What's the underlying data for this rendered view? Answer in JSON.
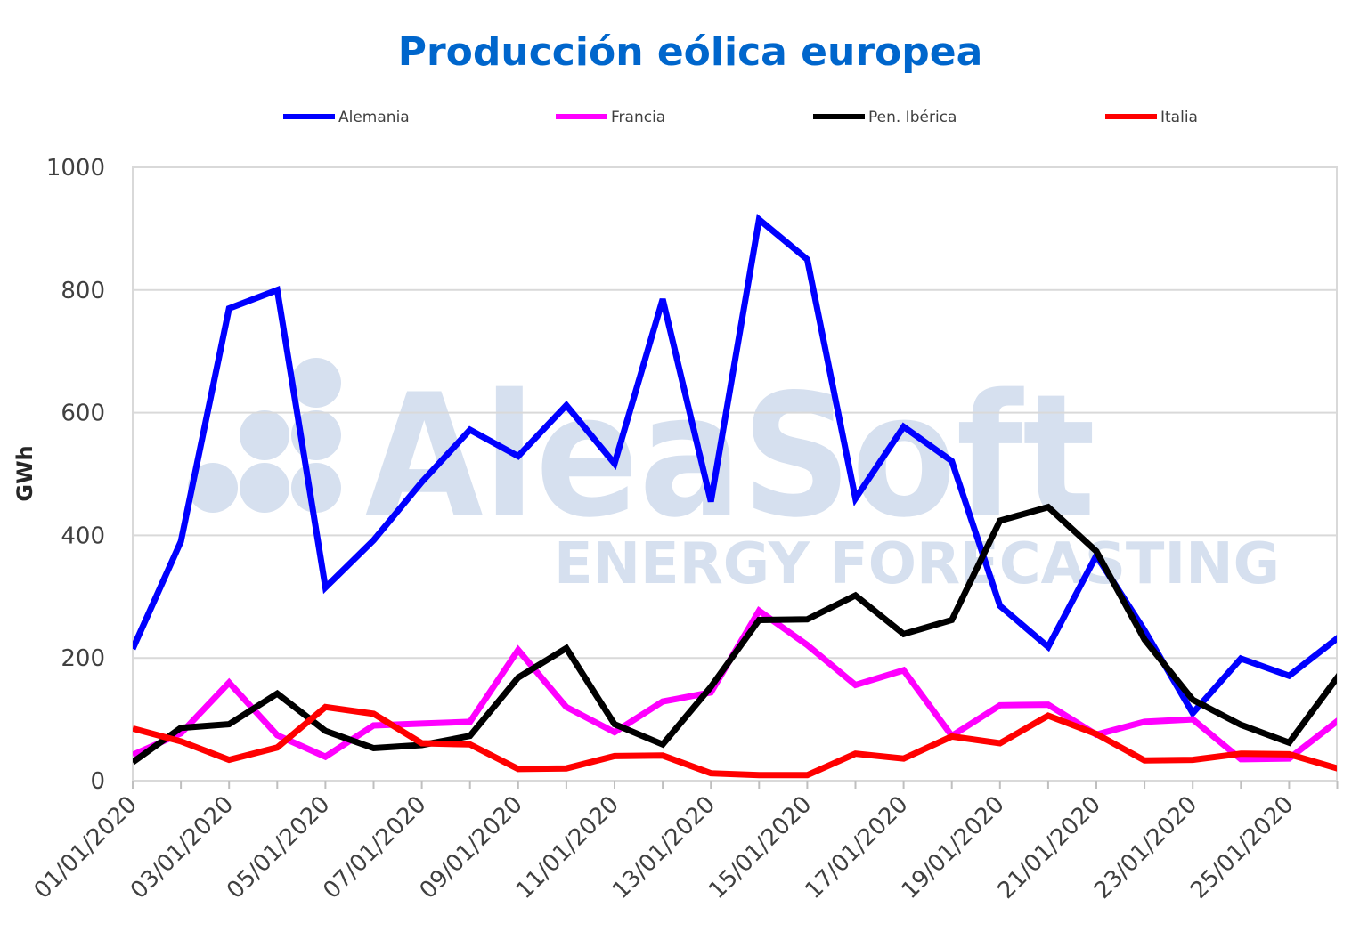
{
  "watermark": {
    "name": "AleaSoft",
    "tagline": "ENERGY FORECASTING",
    "color": "#d6e0ef"
  },
  "chart_data": {
    "type": "line",
    "title": "Producción eólica europea",
    "xlabel": "",
    "ylabel": "GWh",
    "ylim": [
      0,
      1000
    ],
    "yticks": [
      0,
      200,
      400,
      600,
      800,
      1000
    ],
    "grid": true,
    "legend_position": "top",
    "x": [
      "01/01/2020",
      "02/01/2020",
      "03/01/2020",
      "04/01/2020",
      "05/01/2020",
      "06/01/2020",
      "07/01/2020",
      "08/01/2020",
      "09/01/2020",
      "10/01/2020",
      "11/01/2020",
      "12/01/2020",
      "13/01/2020",
      "14/01/2020",
      "15/01/2020",
      "16/01/2020",
      "17/01/2020",
      "18/01/2020",
      "19/01/2020",
      "20/01/2020",
      "21/01/2020",
      "22/01/2020",
      "23/01/2020",
      "24/01/2020",
      "25/01/2020",
      "26/01/2020"
    ],
    "xtick_labels": [
      "01/01/2020",
      "03/01/2020",
      "05/01/2020",
      "07/01/2020",
      "09/01/2020",
      "11/01/2020",
      "13/01/2020",
      "15/01/2020",
      "17/01/2020",
      "19/01/2020",
      "21/01/2020",
      "23/01/2020",
      "25/01/2020"
    ],
    "series": [
      {
        "name": "Alemania",
        "color": "#0000ff",
        "values": [
          215,
          390,
          770,
          800,
          315,
          392,
          487,
          572,
          529,
          612,
          517,
          785,
          455,
          915,
          850,
          460,
          577,
          521,
          285,
          218,
          367,
          245,
          110,
          199,
          171,
          232
        ]
      },
      {
        "name": "Francia",
        "color": "#ff00ff",
        "values": [
          42,
          77,
          160,
          74,
          39,
          90,
          93,
          96,
          213,
          120,
          79,
          129,
          144,
          277,
          221,
          156,
          180,
          73,
          123,
          124,
          75,
          96,
          100,
          35,
          36,
          97
        ]
      },
      {
        "name": "Pen. Ibérica",
        "color": "#000000",
        "values": [
          30,
          86,
          92,
          142,
          81,
          53,
          58,
          73,
          168,
          216,
          92,
          59,
          153,
          262,
          263,
          302,
          239,
          262,
          424,
          446,
          374,
          230,
          132,
          91,
          62,
          168
        ]
      },
      {
        "name": "Italia",
        "color": "#ff0000",
        "values": [
          85,
          64,
          34,
          54,
          120,
          109,
          61,
          59,
          19,
          20,
          40,
          41,
          12,
          9,
          9,
          44,
          36,
          72,
          61,
          106,
          76,
          33,
          34,
          44,
          43,
          20
        ]
      }
    ]
  }
}
